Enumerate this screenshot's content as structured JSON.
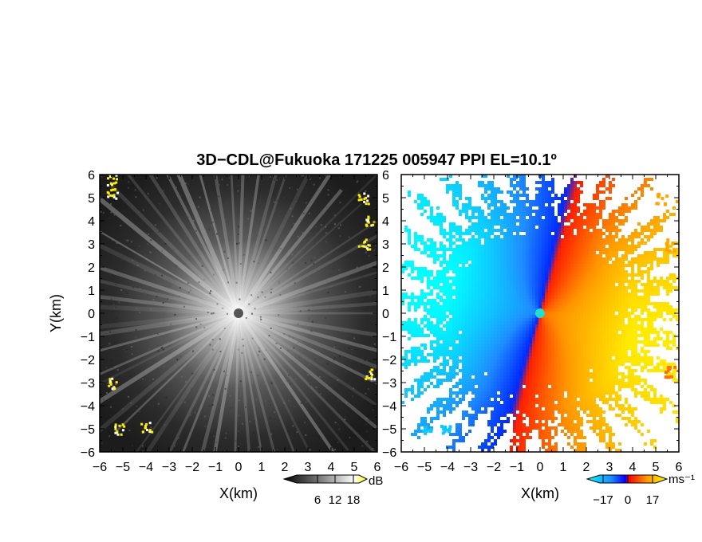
{
  "chart_data": {
    "type": "heatmap",
    "title": "3D−CDL@Fukuoka 171225 005947 PPI EL=10.1º",
    "panels": [
      {
        "name": "reflectivity",
        "xlabel": "X(km)",
        "ylabel": "Y(km)",
        "xlim": [
          -6,
          6
        ],
        "ylim": [
          -6,
          6
        ],
        "xticks": [
          "−6",
          "−5",
          "−4",
          "−3",
          "−2",
          "−1",
          "0",
          "1",
          "2",
          "3",
          "4",
          "5",
          "6"
        ],
        "yticks": [
          "6",
          "5",
          "4",
          "3",
          "2",
          "1",
          "0",
          "−1",
          "−2",
          "−3",
          "−4",
          "−5",
          "−6"
        ],
        "colorbar": {
          "unit": "dB",
          "ticks": [
            "6",
            "12",
            "18"
          ],
          "colors": [
            "#000000",
            "#ffffff",
            "#ffff00"
          ]
        },
        "cloud_echoes": [
          {
            "x": -5.5,
            "y": 5.2
          },
          {
            "x": -5.5,
            "y": 5.8
          },
          {
            "x": 5.4,
            "y": 5.0
          },
          {
            "x": 5.6,
            "y": 4.0
          },
          {
            "x": 5.4,
            "y": 3.0
          },
          {
            "x": 5.6,
            "y": -2.6
          },
          {
            "x": -5.2,
            "y": -5.0
          },
          {
            "x": -4.0,
            "y": -4.9
          },
          {
            "x": -5.5,
            "y": -3.0
          }
        ]
      },
      {
        "name": "doppler-velocity",
        "xlabel": "X(km)",
        "xlim": [
          -6,
          6
        ],
        "ylim": [
          -6,
          6
        ],
        "xticks": [
          "−6",
          "−5",
          "−4",
          "−3",
          "−2",
          "−1",
          "0",
          "1",
          "2",
          "3",
          "4",
          "5",
          "6"
        ],
        "colorbar": {
          "unit": "ms⁻¹",
          "ticks": [
            "−17",
            "0",
            "17"
          ],
          "colors": [
            "#00ffff",
            "#0000ff",
            "#ff0000",
            "#ffff00"
          ]
        },
        "velocity_range": [
          -17,
          17
        ]
      }
    ]
  }
}
